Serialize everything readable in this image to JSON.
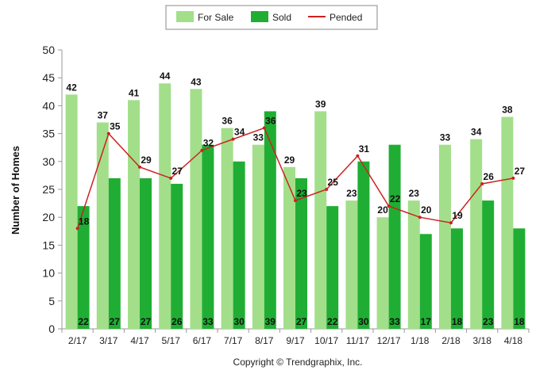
{
  "chart_data": {
    "type": "bar",
    "categories": [
      "2/17",
      "3/17",
      "4/17",
      "5/17",
      "6/17",
      "7/17",
      "8/17",
      "9/17",
      "10/17",
      "11/17",
      "12/17",
      "1/18",
      "2/18",
      "3/18",
      "4/18"
    ],
    "series": [
      {
        "name": "For Sale",
        "kind": "bar",
        "color": "#a3df8a",
        "values": [
          42,
          37,
          41,
          44,
          43,
          36,
          33,
          29,
          39,
          23,
          20,
          23,
          33,
          34,
          38
        ]
      },
      {
        "name": "Sold",
        "kind": "bar",
        "color": "#1fae33",
        "values": [
          22,
          27,
          27,
          26,
          33,
          30,
          39,
          27,
          22,
          30,
          33,
          17,
          18,
          23,
          18
        ]
      },
      {
        "name": "Pended",
        "kind": "line",
        "color": "#cc2222",
        "values": [
          18,
          35,
          29,
          27,
          32,
          34,
          36,
          23,
          25,
          31,
          22,
          20,
          19,
          26,
          27
        ]
      }
    ],
    "ylabel": "Number of Homes",
    "xlabel": "",
    "ylim": [
      0,
      50
    ],
    "yticks": [
      0,
      5,
      10,
      15,
      20,
      25,
      30,
      35,
      40,
      45,
      50
    ],
    "grid": false,
    "legend": "top-center"
  },
  "copyright": "Copyright © Trendgraphix, Inc."
}
